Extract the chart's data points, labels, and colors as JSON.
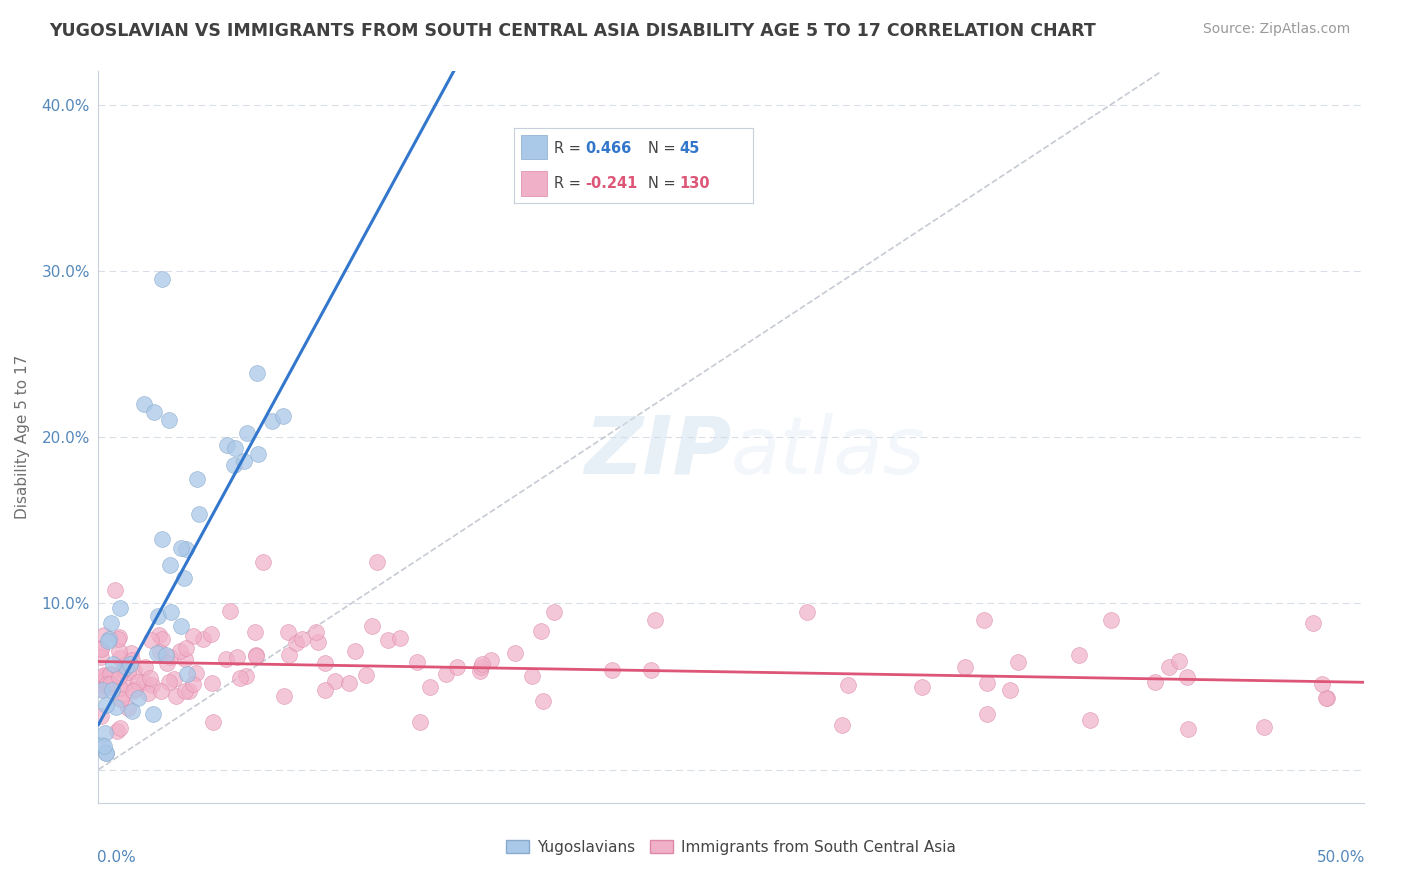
{
  "title": "YUGOSLAVIAN VS IMMIGRANTS FROM SOUTH CENTRAL ASIA DISABILITY AGE 5 TO 17 CORRELATION CHART",
  "source": "Source: ZipAtlas.com",
  "ylabel": "Disability Age 5 to 17",
  "xlim": [
    0.0,
    0.5
  ],
  "ylim": [
    -0.02,
    0.42
  ],
  "ytick_positions": [
    0.0,
    0.1,
    0.2,
    0.3,
    0.4
  ],
  "ytick_labels": [
    "",
    "10.0%",
    "20.0%",
    "30.0%",
    "40.0%"
  ],
  "background_color": "#ffffff",
  "grid_color": "#d8dde8",
  "dashed_line_color": "#b8bec8",
  "blue_line_color": "#3377cc",
  "pink_line_color": "#dd5577",
  "axis_label_color": "#5588bb",
  "title_color": "#404040",
  "source_color": "#999999",
  "series_blue": {
    "name": "Yugoslavians",
    "color": "#aac8e8",
    "edge_color": "#88aacc",
    "r": 0.466,
    "n": 45
  },
  "series_pink": {
    "name": "Immigrants from South Central Asia",
    "color": "#f0b0c8",
    "edge_color": "#dd88a8",
    "r": -0.241,
    "n": 130
  },
  "legend_r_blue": "0.466",
  "legend_n_blue": "45",
  "legend_r_pink": "-0.241",
  "legend_n_pink": "130",
  "legend_r_color_blue": "#3377cc",
  "legend_r_color_pink": "#dd5577",
  "watermark_color": "#d0e0f0",
  "watermark_alpha": 0.5
}
